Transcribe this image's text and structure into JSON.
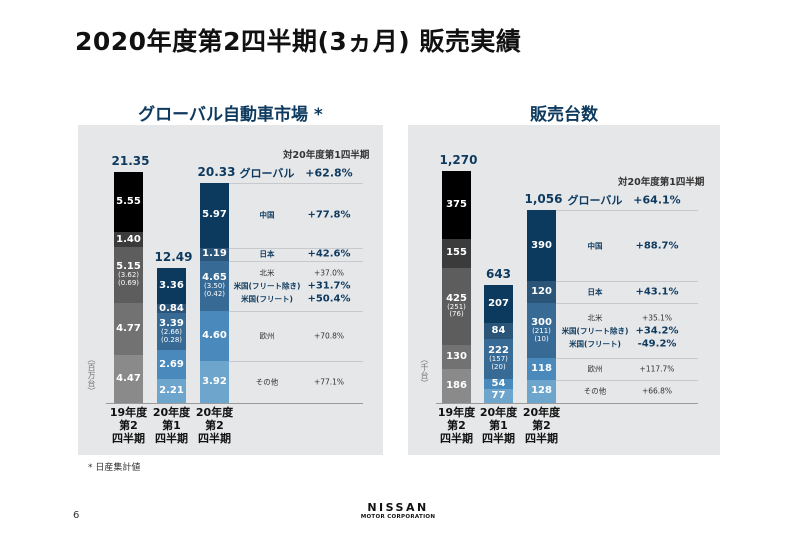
{
  "title": "2020年度第2四半期(3ヵ月) 販売実績",
  "footnote": "* 日産集計値",
  "page_number": "6",
  "logo": {
    "line1": "NISSAN",
    "line2": "MOTOR CORPORATION"
  },
  "chart_data": [
    {
      "type": "stacked-bar",
      "title": "グローバル自動車市場 *",
      "unit": "（百万台）",
      "comparison_header": "対20年度第1四半期",
      "categories": [
        "19年度\n第2\n四半期",
        "20年度\n第1\n四半期",
        "20年度\n第2\n四半期"
      ],
      "totals": [
        "21.35",
        "12.49",
        "20.33"
      ],
      "total_values": [
        21.35,
        12.49,
        20.33
      ],
      "segment_order_bottom_to_top": [
        "その他",
        "欧州",
        "北米",
        "日本",
        "中国"
      ],
      "series": [
        {
          "name": "その他",
          "values": [
            4.47,
            2.21,
            3.92
          ],
          "labels": [
            "4.47",
            "2.21",
            "3.92"
          ]
        },
        {
          "name": "欧州",
          "values": [
            4.77,
            2.69,
            4.6
          ],
          "labels": [
            "4.77",
            "2.69",
            "4.60"
          ]
        },
        {
          "name": "北米",
          "values": [
            5.15,
            3.39,
            4.65
          ],
          "labels": [
            "5.15",
            "3.39",
            "4.65"
          ],
          "sub_labels": [
            [
              "(3.62)",
              "(0.69)"
            ],
            [
              "(2.66)",
              "(0.28)"
            ],
            [
              "(3.50)",
              "(0.42)"
            ]
          ]
        },
        {
          "name": "日本",
          "values": [
            1.4,
            0.84,
            1.19
          ],
          "labels": [
            "1.40",
            "0.84",
            "1.19"
          ]
        },
        {
          "name": "中国",
          "values": [
            5.55,
            3.36,
            5.97
          ],
          "labels": [
            "5.55",
            "3.36",
            "5.97"
          ]
        }
      ],
      "comparison": {
        "global": {
          "name": "グローバル",
          "pct": "+62.8%"
        },
        "china": {
          "name": "中国",
          "pct": "+77.8%"
        },
        "japan": {
          "name": "日本",
          "pct": "+42.6%"
        },
        "na": {
          "name": "北米",
          "pct": "+37.0%"
        },
        "us_ex_fleet": {
          "name": "米国(フリート除き)",
          "pct": "+31.7%"
        },
        "us_fleet": {
          "name": "米国(フリート)",
          "pct": "+50.4%"
        },
        "europe": {
          "name": "欧州",
          "pct": "+70.8%"
        },
        "other": {
          "name": "その他",
          "pct": "+77.1%"
        }
      },
      "colors": {
        "prior_year": [
          "#8a8a8a",
          "#727272",
          "#5d5d5d",
          "#3b3b3b",
          "#000000"
        ],
        "current_year": [
          "#6da5cc",
          "#4989bb",
          "#376b96",
          "#2a5478",
          "#0c3a5f"
        ],
        "accent": "#0d3a5e"
      }
    },
    {
      "type": "stacked-bar",
      "title": "販売台数",
      "unit": "（千台）",
      "comparison_header": "対20年度第1四半期",
      "categories": [
        "19年度\n第2\n四半期",
        "20年度\n第1\n四半期",
        "20年度\n第2\n四半期"
      ],
      "totals": [
        "1,270",
        "643",
        "1,056"
      ],
      "total_values": [
        1270,
        643,
        1056
      ],
      "segment_order_bottom_to_top": [
        "その他",
        "欧州",
        "北米",
        "日本",
        "中国"
      ],
      "series": [
        {
          "name": "その他",
          "values": [
            186,
            77,
            128
          ],
          "labels": [
            "186",
            "77",
            "128"
          ]
        },
        {
          "name": "欧州",
          "values": [
            130,
            54,
            118
          ],
          "labels": [
            "130",
            "54",
            "118"
          ]
        },
        {
          "name": "北米",
          "values": [
            425,
            222,
            300
          ],
          "labels": [
            "425",
            "222",
            "300"
          ],
          "sub_labels": [
            [
              "(251)",
              "(76)"
            ],
            [
              "(157)",
              "(20)"
            ],
            [
              "(211)",
              "(10)"
            ]
          ]
        },
        {
          "name": "日本",
          "values": [
            155,
            84,
            120
          ],
          "labels": [
            "155",
            "84",
            "120"
          ]
        },
        {
          "name": "中国",
          "values": [
            375,
            207,
            390
          ],
          "labels": [
            "375",
            "207",
            "390"
          ]
        }
      ],
      "comparison": {
        "global": {
          "name": "グローバル",
          "pct": "+64.1%"
        },
        "china": {
          "name": "中国",
          "pct": "+88.7%"
        },
        "japan": {
          "name": "日本",
          "pct": "+43.1%"
        },
        "na": {
          "name": "北米",
          "pct": "+35.1%"
        },
        "us_ex_fleet": {
          "name": "米国(フリート除き)",
          "pct": "+34.2%"
        },
        "us_fleet": {
          "name": "米国(フリート)",
          "pct": "-49.2%"
        },
        "europe": {
          "name": "欧州",
          "pct": "+117.7%"
        },
        "other": {
          "name": "その他",
          "pct": "+66.8%"
        }
      },
      "colors": {
        "prior_year": [
          "#8a8a8a",
          "#727272",
          "#5d5d5d",
          "#3b3b3b",
          "#000000"
        ],
        "current_year": [
          "#6da5cc",
          "#4989bb",
          "#376b96",
          "#2a5478",
          "#0c3a5f"
        ],
        "accent": "#0d3a5e"
      }
    }
  ]
}
